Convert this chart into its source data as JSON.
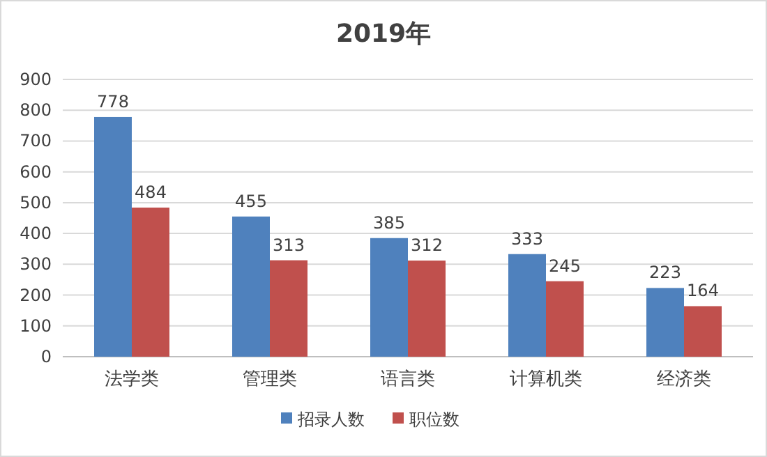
{
  "chart_data": {
    "type": "bar",
    "title": "2019年",
    "categories": [
      "法学类",
      "管理类",
      "语言类",
      "计算机类",
      "经济类"
    ],
    "series": [
      {
        "name": "招录人数",
        "color": "#4f81bd",
        "values": [
          778,
          455,
          385,
          333,
          223
        ]
      },
      {
        "name": "职位数",
        "color": "#c0504d",
        "values": [
          484,
          313,
          312,
          245,
          164
        ]
      }
    ],
    "ylim": [
      0,
      900
    ],
    "yticks": [
      0,
      100,
      200,
      300,
      400,
      500,
      600,
      700,
      800,
      900
    ],
    "grid": "y",
    "legend": "bottom",
    "data_labels": true
  }
}
